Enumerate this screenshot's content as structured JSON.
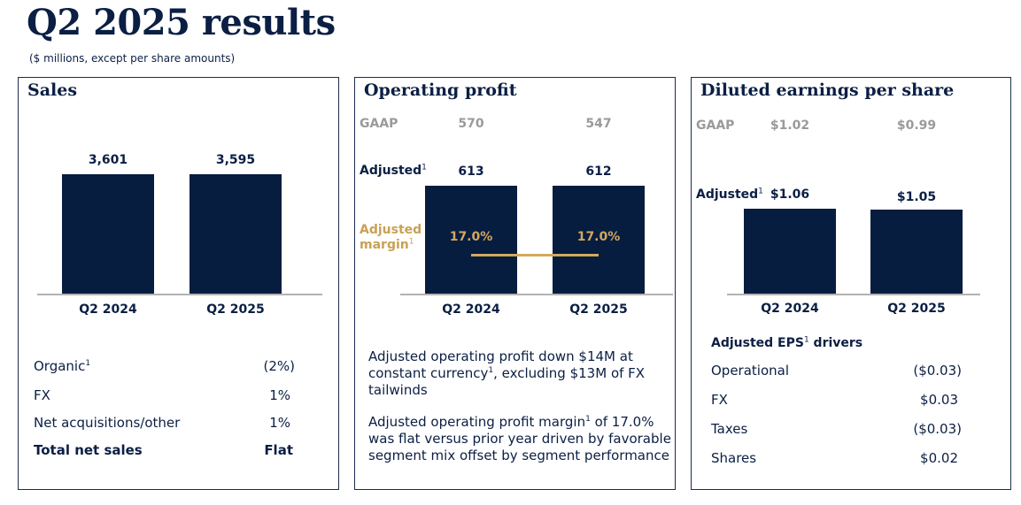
{
  "page": {
    "title": "Q2 2025 results",
    "subtitle": "($ millions, except per share amounts)"
  },
  "colors": {
    "bar": "#061d40",
    "gaap": "#9a9a9a",
    "margin": "#d4a85c",
    "text": "#0b1f44"
  },
  "sales": {
    "title": "Sales",
    "bar_labels": [
      "3,601",
      "3,595"
    ],
    "table": [
      {
        "label": "Organic",
        "sup": "1",
        "value": "(2%)"
      },
      {
        "label": "FX",
        "sup": "",
        "value": "1%"
      },
      {
        "label": "Net acquisitions/other",
        "sup": "",
        "value": "1%"
      },
      {
        "label": "Total net sales",
        "sup": "",
        "value": "Flat"
      }
    ]
  },
  "operating_profit": {
    "title": "Operating profit",
    "gaap_label": "GAAP",
    "gaap_values": [
      "570",
      "547"
    ],
    "adjusted_label": "Adjusted",
    "adjusted_sup": "1",
    "bar_labels": [
      "613",
      "612"
    ],
    "margin_label_line1": "Adjusted",
    "margin_label_line2": "margin",
    "margin_sup": "1",
    "margin_values": [
      "17.0%",
      "17.0%"
    ],
    "para1_a": "Adjusted operating profit down $14M at constant currency",
    "para1_sup": "1",
    "para1_b": ", excluding $13M of FX tailwinds",
    "para2_a": "Adjusted operating profit margin",
    "para2_sup": "1",
    "para2_b": " of 17.0% was flat versus prior year driven by favorable segment mix offset by segment performance"
  },
  "eps": {
    "title": "Diluted earnings per share",
    "gaap_label": "GAAP",
    "gaap_values": [
      "$1.02",
      "$0.99"
    ],
    "adjusted_label": "Adjusted",
    "adjusted_sup": "1",
    "bar_labels": [
      "$1.06",
      "$1.05"
    ],
    "drivers_title_a": "Adjusted EPS",
    "drivers_sup": "1",
    "drivers_title_b": " drivers",
    "drivers": [
      {
        "label": "Operational",
        "value": "($0.03)"
      },
      {
        "label": "FX",
        "value": "$0.03"
      },
      {
        "label": "Taxes",
        "value": "($0.03)"
      },
      {
        "label": "Shares",
        "value": "$0.02"
      }
    ]
  },
  "chart_data": [
    {
      "type": "bar",
      "title": "Sales",
      "categories": [
        "Q2 2024",
        "Q2 2025"
      ],
      "values": [
        3601,
        3595
      ]
    },
    {
      "type": "bar",
      "title": "Operating profit",
      "categories": [
        "Q2 2024",
        "Q2 2025"
      ],
      "series": [
        {
          "name": "Adjusted",
          "values": [
            613,
            612
          ]
        },
        {
          "name": "GAAP",
          "values": [
            570,
            547
          ]
        },
        {
          "name": "Adjusted margin",
          "values": [
            17.0,
            17.0
          ]
        }
      ]
    },
    {
      "type": "bar",
      "title": "Diluted earnings per share",
      "categories": [
        "Q2 2024",
        "Q2 2025"
      ],
      "series": [
        {
          "name": "Adjusted",
          "values": [
            1.06,
            1.05
          ]
        },
        {
          "name": "GAAP",
          "values": [
            1.02,
            0.99
          ]
        }
      ]
    }
  ]
}
